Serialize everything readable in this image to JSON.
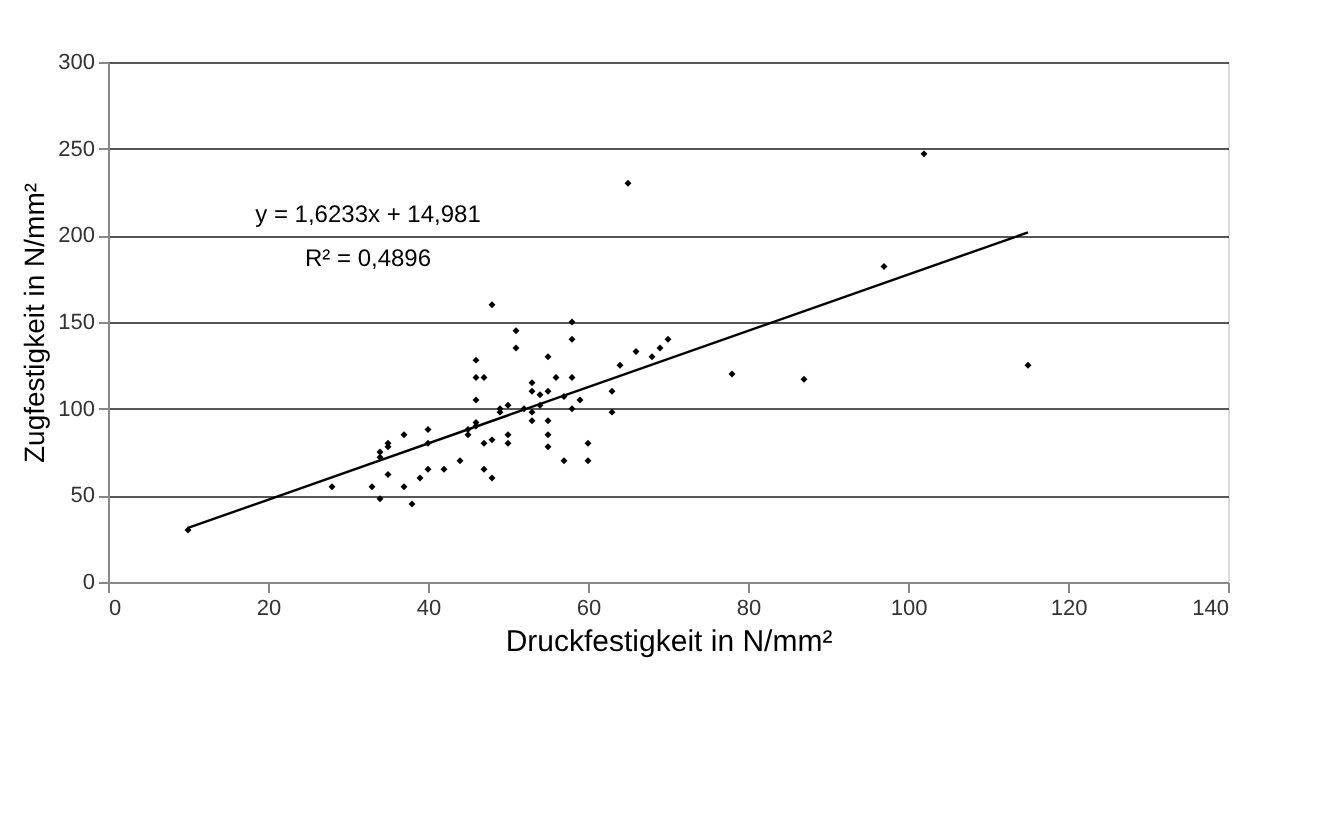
{
  "chart_data": {
    "type": "scatter",
    "xlabel": "Druckfestigkeit in N/mm²",
    "ylabel": "Zugfestigkeit in N/mm²",
    "xlim": [
      0,
      140
    ],
    "xticks": [
      0,
      20,
      40,
      60,
      80,
      100,
      120,
      140
    ],
    "ylim": [
      0,
      300
    ],
    "yticks": [
      0,
      50,
      100,
      150,
      200,
      250,
      300
    ],
    "grid": "y",
    "marker": "diamond",
    "series": [
      {
        "color": "#000000",
        "x": [
          10,
          28,
          33,
          34,
          34,
          34,
          35,
          35,
          35,
          37,
          37,
          38,
          39,
          40,
          40,
          40,
          42,
          44,
          45,
          45,
          46,
          46,
          46,
          46,
          46,
          47,
          47,
          47,
          48,
          48,
          48,
          49,
          49,
          50,
          50,
          50,
          51,
          51,
          52,
          53,
          53,
          53,
          53,
          54,
          54,
          55,
          55,
          55,
          55,
          55,
          56,
          57,
          57,
          58,
          58,
          58,
          58,
          59,
          60,
          60,
          63,
          63,
          64,
          65,
          66,
          68,
          69,
          70,
          78,
          87,
          97,
          102,
          115
        ],
        "values": [
          30,
          55,
          55,
          48,
          72,
          75,
          62,
          78,
          80,
          85,
          55,
          45,
          60,
          65,
          80,
          88,
          65,
          70,
          85,
          88,
          105,
          118,
          128,
          90,
          92,
          118,
          80,
          65,
          160,
          82,
          60,
          98,
          100,
          102,
          85,
          80,
          145,
          135,
          100,
          115,
          110,
          98,
          93,
          108,
          102,
          130,
          110,
          93,
          85,
          78,
          118,
          70,
          107,
          150,
          140,
          118,
          100,
          105,
          80,
          70,
          110,
          98,
          125,
          230,
          133,
          130,
          135,
          140,
          120,
          117,
          182,
          247,
          125
        ]
      },
      {
        "type": "line",
        "color": "#000000",
        "marker": "none",
        "line_style": "solid",
        "x": [
          10,
          115
        ],
        "values": [
          31.2,
          201.7
        ]
      }
    ],
    "annotations": [
      "y = 1,6233x + 14,981",
      "R² = 0,4896"
    ]
  }
}
